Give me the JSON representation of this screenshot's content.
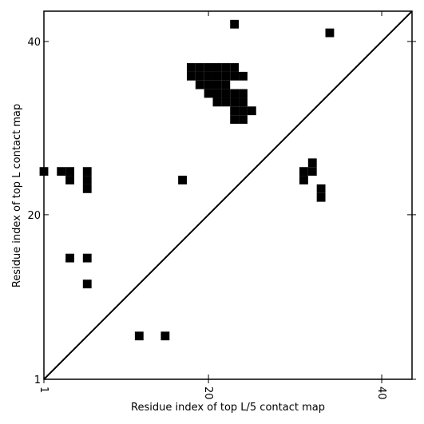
{
  "chart_data": {
    "type": "heatmap",
    "xlabel": "Residue index of top L/5 contact map",
    "ylabel": "Residue index of top L contact map",
    "xlim": [
      1,
      43.5
    ],
    "ylim": [
      1,
      43.5
    ],
    "xticks": [
      1,
      20,
      40
    ],
    "yticks": [
      1,
      20,
      40
    ],
    "xtick_labels": [
      "1",
      "20",
      "40"
    ],
    "ytick_labels": [
      "1",
      "20",
      "40"
    ],
    "diagonal": true,
    "cell_color": "#000000",
    "contacts": [
      [
        23,
        42
      ],
      [
        34,
        41
      ],
      [
        18,
        37
      ],
      [
        19,
        37
      ],
      [
        20,
        37
      ],
      [
        21,
        37
      ],
      [
        22,
        37
      ],
      [
        23,
        37
      ],
      [
        18,
        36
      ],
      [
        19,
        36
      ],
      [
        20,
        36
      ],
      [
        21,
        36
      ],
      [
        22,
        36
      ],
      [
        23,
        36
      ],
      [
        24,
        36
      ],
      [
        19,
        35
      ],
      [
        20,
        35
      ],
      [
        21,
        35
      ],
      [
        22,
        35
      ],
      [
        20,
        34
      ],
      [
        21,
        34
      ],
      [
        22,
        34
      ],
      [
        23,
        34
      ],
      [
        24,
        34
      ],
      [
        21,
        33
      ],
      [
        22,
        33
      ],
      [
        23,
        33
      ],
      [
        24,
        33
      ],
      [
        23,
        32
      ],
      [
        24,
        32
      ],
      [
        25,
        32
      ],
      [
        23,
        31
      ],
      [
        24,
        31
      ],
      [
        1,
        25
      ],
      [
        3,
        25
      ],
      [
        4,
        25
      ],
      [
        6,
        25
      ],
      [
        31,
        25
      ],
      [
        32,
        25
      ],
      [
        32,
        26
      ],
      [
        4,
        24
      ],
      [
        6,
        24
      ],
      [
        17,
        24
      ],
      [
        31,
        24
      ],
      [
        6,
        23
      ],
      [
        33,
        23
      ],
      [
        33,
        22
      ],
      [
        4,
        15
      ],
      [
        6,
        15
      ],
      [
        6,
        12
      ],
      [
        12,
        6
      ],
      [
        15,
        6
      ]
    ]
  }
}
